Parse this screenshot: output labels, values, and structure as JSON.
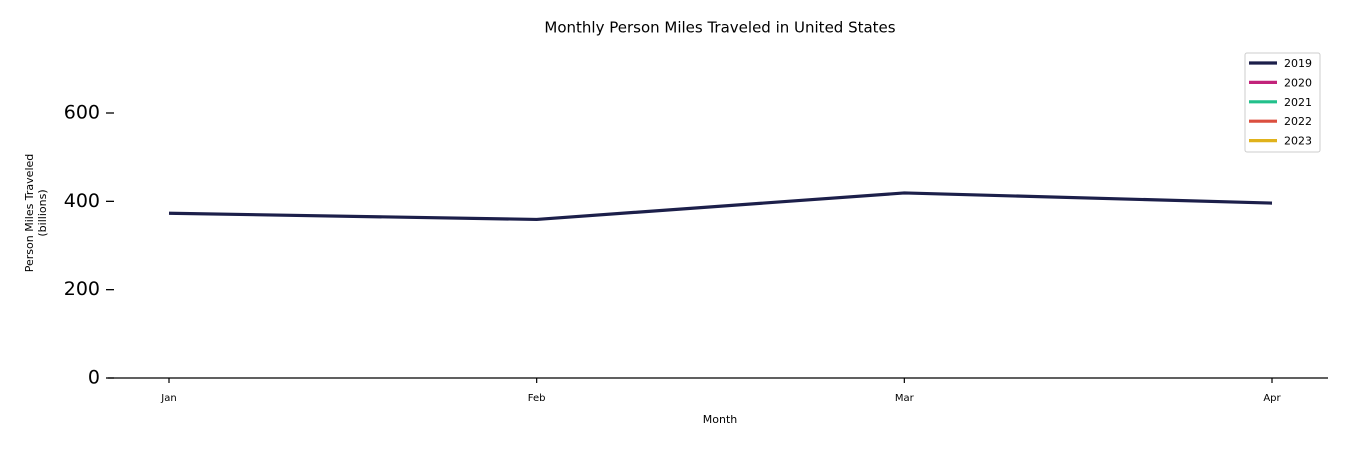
{
  "chart_data": {
    "type": "line",
    "title": "Monthly Person Miles Traveled in United States",
    "x_label": "Month",
    "y_label": [
      "Person Miles Traveled",
      "(billions)"
    ],
    "categories": [
      "Jan",
      "Feb",
      "Mar",
      "Apr"
    ],
    "series": [
      {
        "name": "2019",
        "color": "#1c1f4a",
        "values": [
          373,
          359,
          419,
          396
        ]
      },
      {
        "name": "2020",
        "color": "#c2237a",
        "values": [
          null,
          null,
          null,
          null
        ]
      },
      {
        "name": "2021",
        "color": "#22c08b",
        "values": [
          null,
          null,
          null,
          null
        ]
      },
      {
        "name": "2022",
        "color": "#db4f3f",
        "values": [
          null,
          null,
          null,
          null
        ]
      },
      {
        "name": "2023",
        "color": "#e0b21b",
        "values": [
          null,
          null,
          null,
          null
        ]
      }
    ],
    "ylim": [
      0,
      720
    ],
    "yticks": [
      0,
      200,
      400,
      600
    ],
    "grid": false,
    "legend": "upper right"
  }
}
